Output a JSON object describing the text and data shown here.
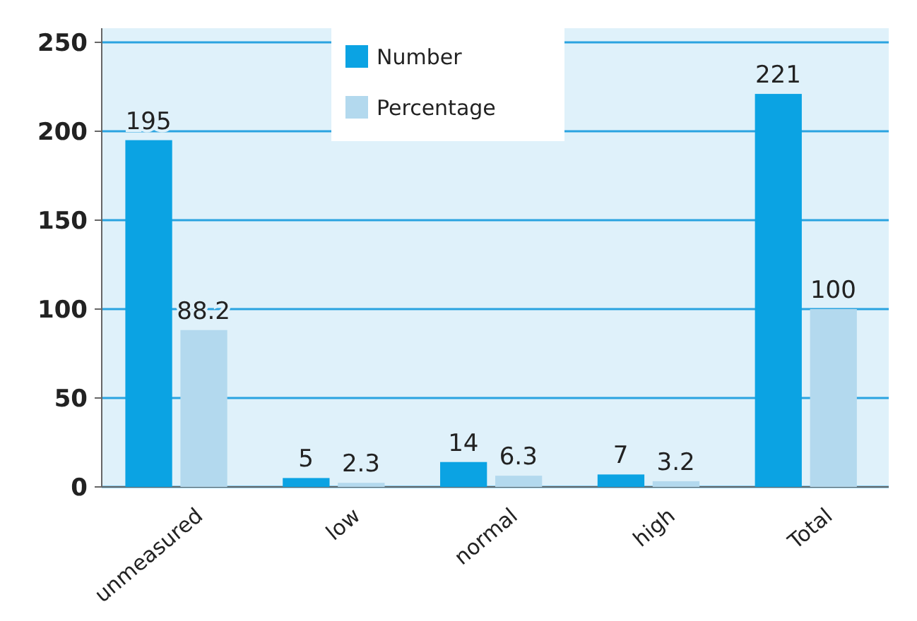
{
  "chart_data": {
    "type": "bar",
    "categories": [
      "unmeasured",
      "low",
      "normal",
      "high",
      "Total"
    ],
    "series": [
      {
        "name": "Number",
        "color": "#0ba3e3",
        "values": [
          195,
          5,
          14,
          7,
          221
        ]
      },
      {
        "name": "Percentage",
        "color": "#b3d9ee",
        "values": [
          88.2,
          2.3,
          6.3,
          3.2,
          100
        ]
      }
    ],
    "ylim": [
      0,
      250
    ],
    "yticks": [
      0,
      50,
      100,
      150,
      200,
      250
    ],
    "grid": "y",
    "legend": "top",
    "data_labels": true
  }
}
